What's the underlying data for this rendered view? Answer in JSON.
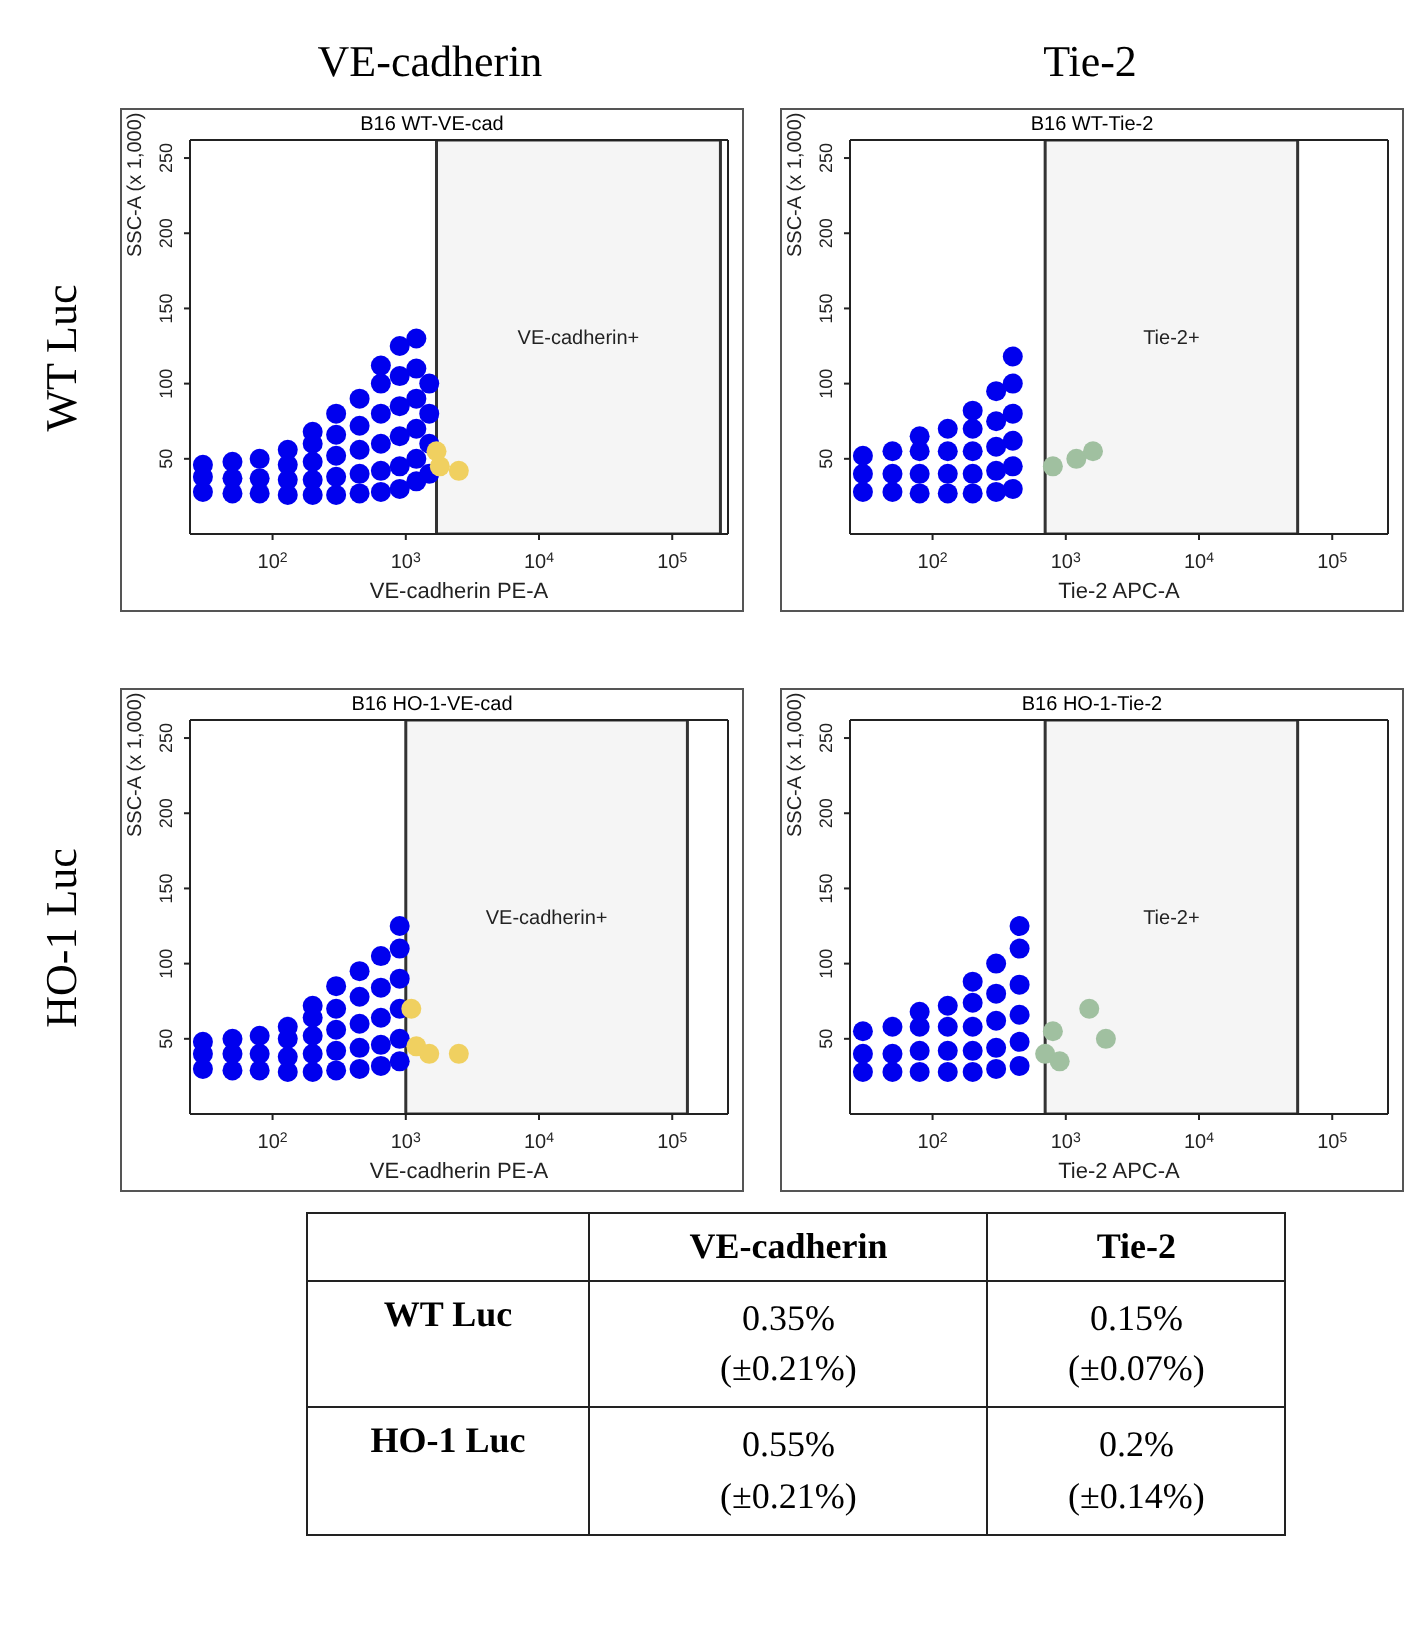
{
  "chart_data": [
    {
      "type": "scatter",
      "title": "B16 WT-VE-cad",
      "xlabel": "VE-cadherin PE-A",
      "ylabel": "SSC-A (x 1,000)",
      "log": "x",
      "marker": "circle",
      "annotations": [
        "VE-cadherin",
        "WT Luc"
      ],
      "bands": [
        {
          "axis": "x",
          "from": 1700,
          "to": 230000,
          "label": "VE-cadherin+",
          "color": "#333333"
        }
      ],
      "xlim": [
        24,
        262144
      ],
      "xticks": [
        {
          "value": 100,
          "label": "10$^{2}$"
        },
        {
          "value": 1000,
          "label": "10$^{3}$"
        },
        {
          "value": 10000,
          "label": "10$^{4}$"
        },
        {
          "value": 100000,
          "label": "10$^{5}$"
        }
      ],
      "ylim": [
        0,
        262
      ],
      "yticks": [
        50,
        100,
        150,
        200,
        250
      ],
      "series": [
        {
          "color": "#0000ee",
          "x": [
            30,
            30,
            30,
            50,
            50,
            50,
            80,
            80,
            80,
            130,
            130,
            130,
            130,
            200,
            200,
            200,
            200,
            200,
            300,
            300,
            300,
            300,
            300,
            450,
            450,
            450,
            450,
            450,
            650,
            650,
            650,
            650,
            650,
            650,
            900,
            900,
            900,
            900,
            900,
            900,
            1200,
            1200,
            1200,
            1200,
            1200,
            1200,
            1500,
            1500,
            1500,
            1500
          ],
          "values": [
            28,
            38,
            46,
            27,
            37,
            48,
            27,
            37,
            50,
            26,
            36,
            46,
            56,
            26,
            36,
            48,
            60,
            68,
            26,
            38,
            52,
            66,
            80,
            27,
            40,
            56,
            72,
            90,
            28,
            42,
            60,
            80,
            100,
            112,
            30,
            45,
            65,
            85,
            105,
            125,
            35,
            50,
            70,
            90,
            110,
            130,
            40,
            60,
            80,
            100
          ]
        },
        {
          "color": "#f0d060",
          "x": [
            1800,
            2500,
            1700
          ],
          "values": [
            45,
            42,
            55
          ]
        }
      ]
    },
    {
      "type": "scatter",
      "title": "B16 WT-Tie-2",
      "xlabel": "Tie-2 APC-A",
      "ylabel": "SSC-A (x 1,000)",
      "log": "x",
      "marker": "circle",
      "annotations": [
        "Tie-2"
      ],
      "bands": [
        {
          "axis": "x",
          "from": 700,
          "to": 55000,
          "label": "Tie-2+",
          "color": "#333333"
        }
      ],
      "xlim": [
        24,
        262144
      ],
      "xticks": [
        {
          "value": 100,
          "label": "10$^{2}$"
        },
        {
          "value": 1000,
          "label": "10$^{3}$"
        },
        {
          "value": 10000,
          "label": "10$^{4}$"
        },
        {
          "value": 100000,
          "label": "10$^{5}$"
        }
      ],
      "ylim": [
        0,
        262
      ],
      "yticks": [
        50,
        100,
        150,
        200,
        250
      ],
      "series": [
        {
          "color": "#0000ee",
          "x": [
            30,
            30,
            30,
            50,
            50,
            50,
            80,
            80,
            80,
            80,
            130,
            130,
            130,
            130,
            200,
            200,
            200,
            200,
            200,
            300,
            300,
            300,
            300,
            300,
            400,
            400,
            400,
            400,
            400,
            400
          ],
          "values": [
            28,
            40,
            52,
            28,
            40,
            55,
            27,
            40,
            55,
            65,
            27,
            40,
            55,
            70,
            27,
            40,
            55,
            70,
            82,
            28,
            42,
            58,
            75,
            95,
            30,
            45,
            62,
            80,
            100,
            118
          ]
        },
        {
          "color": "#a0c0a0",
          "x": [
            800,
            1200,
            1600
          ],
          "values": [
            45,
            50,
            55
          ]
        }
      ]
    },
    {
      "type": "scatter",
      "title": "B16 HO-1-VE-cad",
      "xlabel": "VE-cadherin PE-A",
      "ylabel": "SSC-A (x 1,000)",
      "log": "x",
      "marker": "circle",
      "annotations": [
        "HO-1 Luc"
      ],
      "bands": [
        {
          "axis": "x",
          "from": 1000,
          "to": 130000,
          "label": "VE-cadherin+",
          "color": "#333333"
        }
      ],
      "xlim": [
        24,
        262144
      ],
      "xticks": [
        {
          "value": 100,
          "label": "10$^{2}$"
        },
        {
          "value": 1000,
          "label": "10$^{3}$"
        },
        {
          "value": 10000,
          "label": "10$^{4}$"
        },
        {
          "value": 100000,
          "label": "10$^{5}$"
        }
      ],
      "ylim": [
        0,
        262
      ],
      "yticks": [
        50,
        100,
        150,
        200,
        250
      ],
      "series": [
        {
          "color": "#0000ee",
          "x": [
            30,
            30,
            30,
            50,
            50,
            50,
            80,
            80,
            80,
            130,
            130,
            130,
            130,
            200,
            200,
            200,
            200,
            200,
            300,
            300,
            300,
            300,
            300,
            450,
            450,
            450,
            450,
            450,
            650,
            650,
            650,
            650,
            650,
            900,
            900,
            900,
            900,
            900,
            900
          ],
          "values": [
            30,
            40,
            48,
            29,
            40,
            50,
            29,
            40,
            52,
            28,
            38,
            50,
            58,
            28,
            40,
            52,
            64,
            72,
            29,
            42,
            56,
            70,
            85,
            30,
            44,
            60,
            78,
            95,
            32,
            46,
            64,
            84,
            105,
            35,
            50,
            70,
            90,
            110,
            125
          ]
        },
        {
          "color": "#f0d060",
          "x": [
            1200,
            1500,
            2500,
            1100
          ],
          "values": [
            45,
            40,
            40,
            70
          ]
        }
      ]
    },
    {
      "type": "scatter",
      "title": "B16 HO-1-Tie-2",
      "xlabel": "Tie-2 APC-A",
      "ylabel": "SSC-A (x 1,000)",
      "log": "x",
      "marker": "circle",
      "bands": [
        {
          "axis": "x",
          "from": 700,
          "to": 55000,
          "label": "Tie-2+",
          "color": "#333333"
        }
      ],
      "xlim": [
        24,
        262144
      ],
      "xticks": [
        {
          "value": 100,
          "label": "10$^{2}$"
        },
        {
          "value": 1000,
          "label": "10$^{3}$"
        },
        {
          "value": 10000,
          "label": "10$^{4}$"
        },
        {
          "value": 100000,
          "label": "10$^{5}$"
        }
      ],
      "ylim": [
        0,
        262
      ],
      "yticks": [
        50,
        100,
        150,
        200,
        250
      ],
      "series": [
        {
          "color": "#0000ee",
          "x": [
            30,
            30,
            30,
            50,
            50,
            50,
            80,
            80,
            80,
            80,
            130,
            130,
            130,
            130,
            200,
            200,
            200,
            200,
            200,
            300,
            300,
            300,
            300,
            300,
            450,
            450,
            450,
            450,
            450,
            450
          ],
          "values": [
            28,
            40,
            55,
            28,
            40,
            58,
            28,
            42,
            58,
            68,
            28,
            42,
            58,
            72,
            28,
            42,
            58,
            74,
            88,
            30,
            44,
            62,
            80,
            100,
            32,
            48,
            66,
            86,
            110,
            125
          ]
        },
        {
          "color": "#a0c0a0",
          "x": [
            700,
            800,
            1500,
            2000,
            900
          ],
          "values": [
            40,
            55,
            70,
            50,
            35
          ]
        }
      ]
    },
    {
      "type": "other",
      "categories": [
        "WT Luc",
        "HO-1 Luc"
      ],
      "series": [
        {
          "name": "VE-cadherin",
          "values": [
            0.35,
            0.55
          ],
          "value_labels": [
            "0.35%\n(±0.21%)",
            "0.55%\n(±0.21%)"
          ]
        },
        {
          "name": "Tie-2",
          "values": [
            0.15,
            0.2
          ],
          "value_labels": [
            "0.15%\n(±0.07%)",
            "0.2%\n(±0.14%)"
          ]
        }
      ]
    }
  ]
}
